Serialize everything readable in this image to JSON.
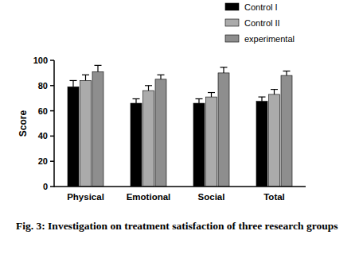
{
  "chart_data": {
    "type": "bar",
    "title": "Fig. 3: Investigation on treatment satisfaction of three research groups",
    "y_label": "Score",
    "categories": [
      "Physical",
      "Emotional",
      "Social",
      "Total"
    ],
    "series": [
      {
        "name": "Control I",
        "color": "#000000",
        "values": [
          79,
          66,
          66,
          67.5
        ],
        "errors": [
          5,
          3.5,
          3.5,
          3.5
        ]
      },
      {
        "name": "Control II",
        "color": "#ababab",
        "values": [
          84,
          76,
          71,
          73
        ],
        "errors": [
          4.5,
          4,
          3.5,
          4
        ]
      },
      {
        "name": "experimental",
        "color": "#8e8e8e",
        "values": [
          91,
          85,
          90,
          88
        ],
        "errors": [
          5,
          3.5,
          4.5,
          3.5
        ]
      }
    ],
    "ylim": [
      0,
      100
    ],
    "yticks": [
      0,
      20,
      40,
      60,
      80,
      100
    ],
    "grid": false,
    "legend": "upper right"
  }
}
